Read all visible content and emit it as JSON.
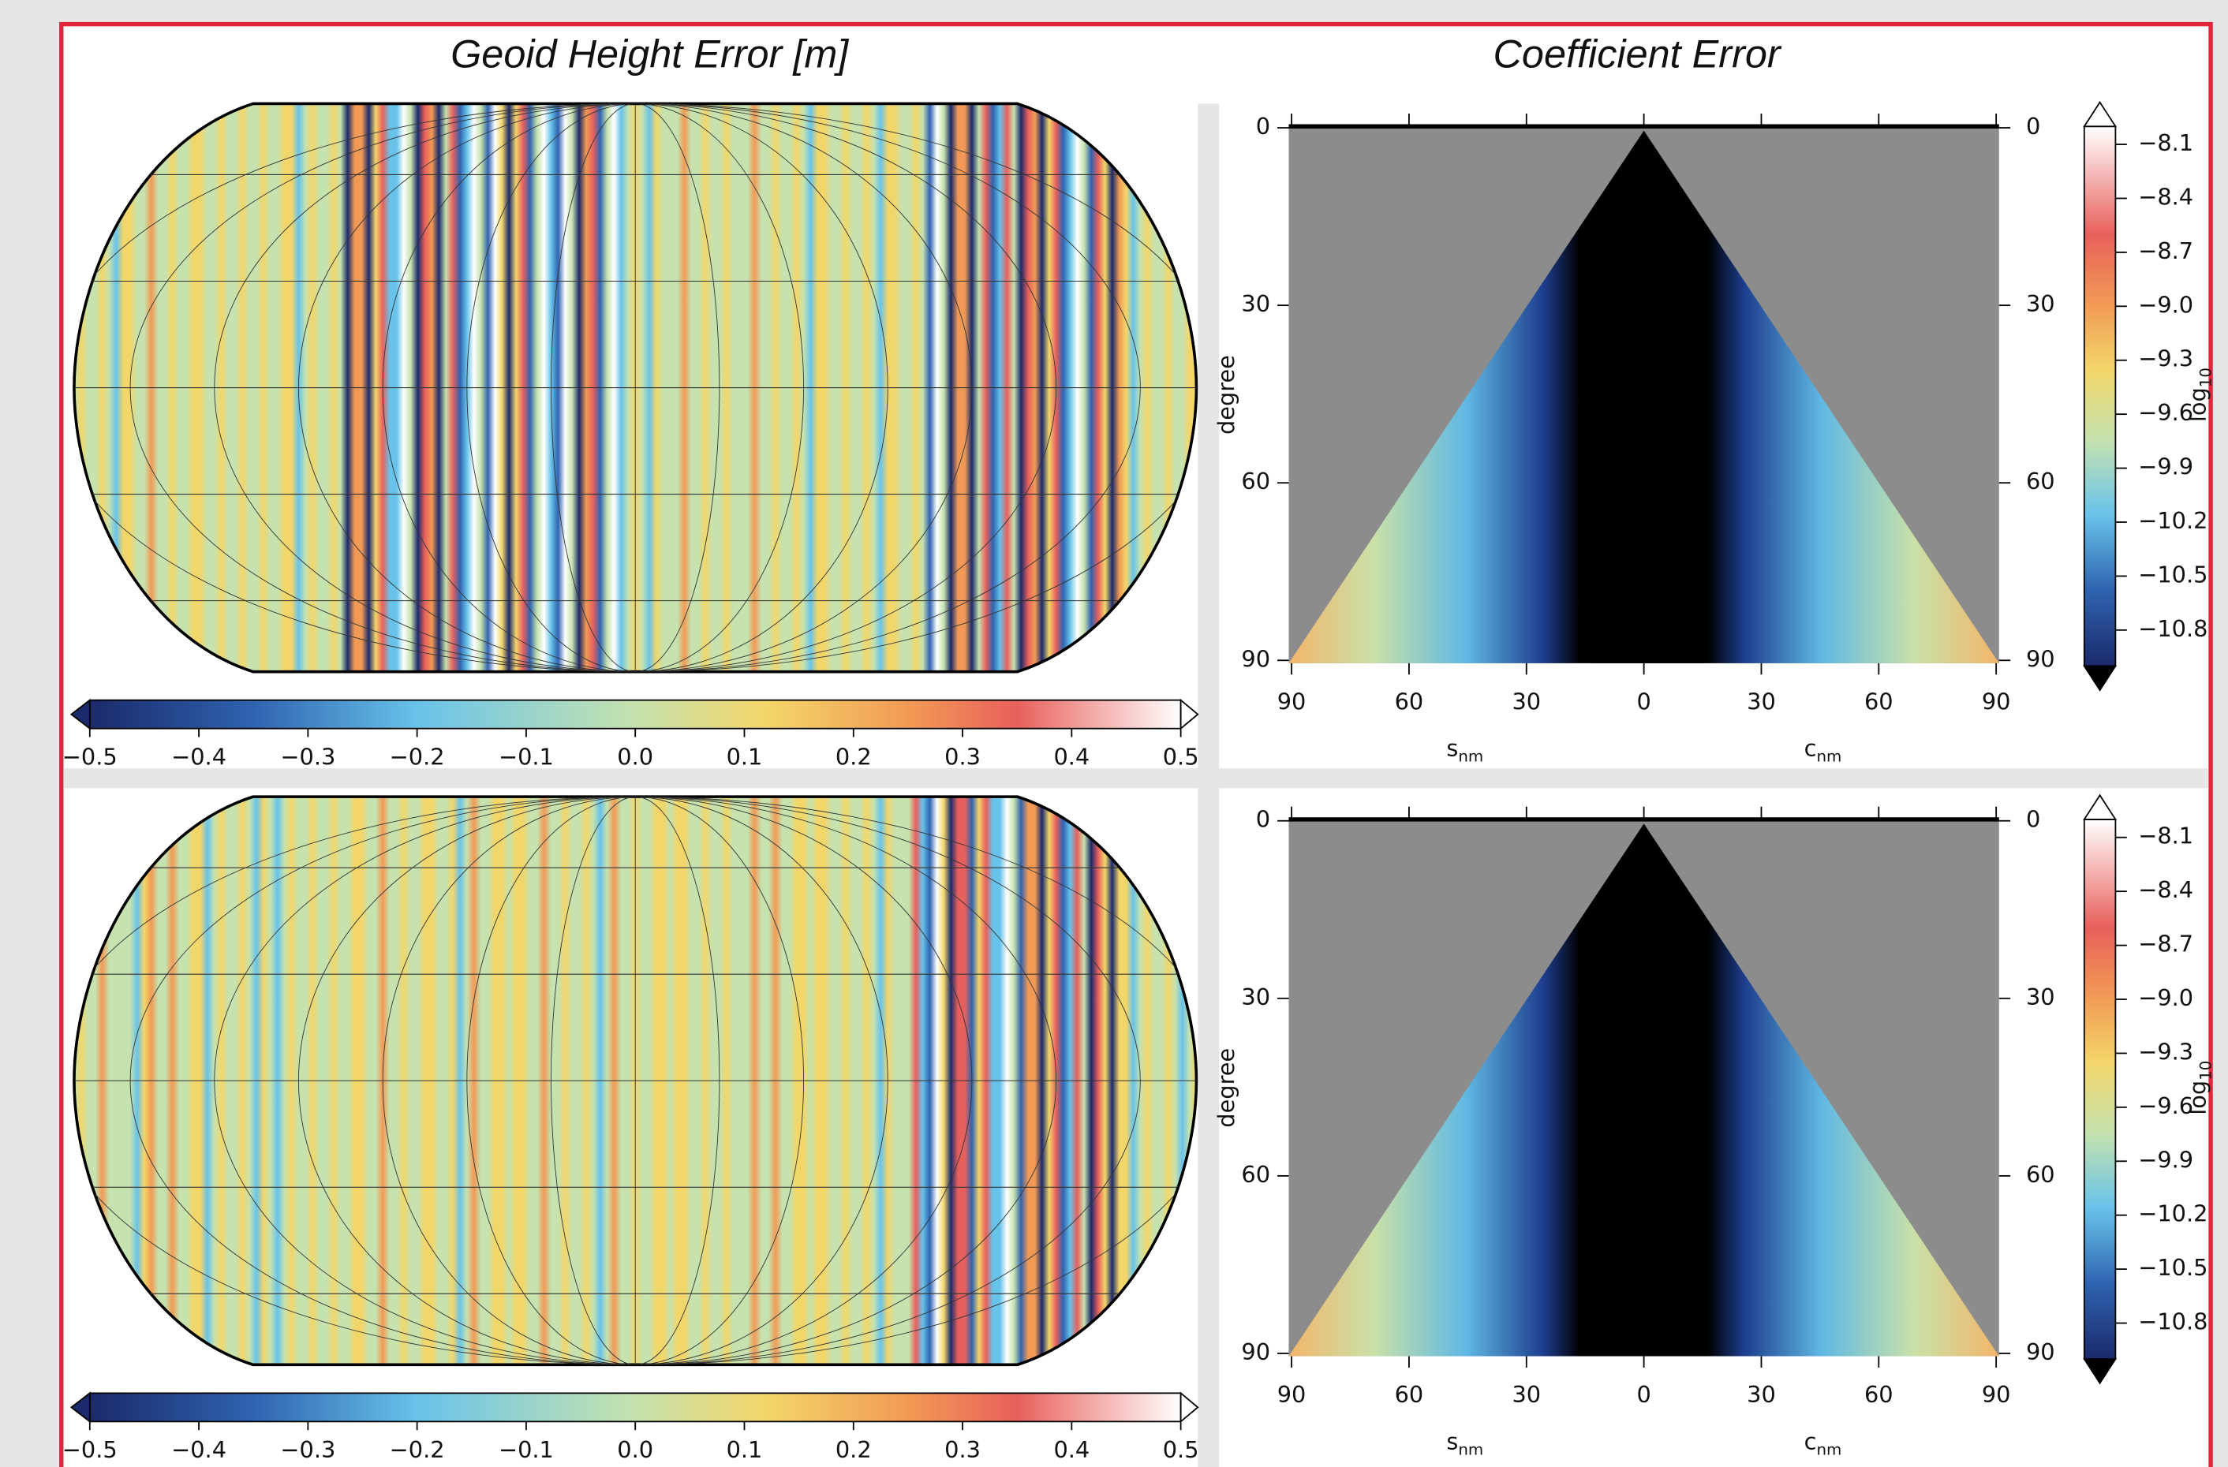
{
  "titles": {
    "geoid": "Geoid Height Error [m]",
    "coefficient": "Coefficient Error"
  },
  "rows": [
    {
      "geoid_colorbar": {
        "lim": [
          -0.5,
          0.5
        ],
        "ticks": [
          {
            "value": -0.5,
            "label": "−0.5"
          },
          {
            "value": -0.4,
            "label": "−0.4"
          },
          {
            "value": -0.3,
            "label": "−0.3"
          },
          {
            "value": -0.2,
            "label": "−0.2"
          },
          {
            "value": -0.1,
            "label": "−0.1"
          },
          {
            "value": 0,
            "label": "0.0"
          },
          0.1,
          0.2,
          0.3,
          0.4,
          0.5
        ]
      },
      "coefficient_plot": {
        "ylabel": "degree",
        "ylim": [
          0,
          90
        ],
        "yticks": [
          0,
          30,
          60,
          90
        ],
        "xlim": [
          -90,
          90
        ],
        "xticks": [
          {
            "value": -90,
            "label": "90"
          },
          {
            "value": -60,
            "label": "60"
          },
          {
            "value": -30,
            "label": "30"
          },
          0,
          30,
          60,
          90
        ],
        "xlabels": [
          {
            "main": "s",
            "sub": "nm"
          },
          {
            "main": "c",
            "sub": "nm"
          }
        ]
      },
      "coefficient_colorbar": {
        "label_main": "log",
        "label_sub": "10",
        "lim": [
          -11,
          -8
        ],
        "ticks": [
          {
            "value": -8.1,
            "label": "−8.1"
          },
          {
            "value": -8.4,
            "label": "−8.4"
          },
          {
            "value": -8.7,
            "label": "−8.7"
          },
          {
            "value": -9.0,
            "label": "−9.0"
          },
          {
            "value": -9.3,
            "label": "−9.3"
          },
          {
            "value": -9.6,
            "label": "−9.6"
          },
          {
            "value": -9.9,
            "label": "−9.9"
          },
          {
            "value": -10.2,
            "label": "−10.2"
          },
          {
            "value": -10.5,
            "label": "−10.5"
          },
          {
            "value": -10.8,
            "label": "−10.8"
          }
        ]
      }
    },
    {
      "geoid_colorbar": {
        "lim": [
          -0.5,
          0.5
        ],
        "ticks": [
          {
            "value": -0.5,
            "label": "−0.5"
          },
          {
            "value": -0.4,
            "label": "−0.4"
          },
          {
            "value": -0.3,
            "label": "−0.3"
          },
          {
            "value": -0.2,
            "label": "−0.2"
          },
          {
            "value": -0.1,
            "label": "−0.1"
          },
          {
            "value": 0,
            "label": "0.0"
          },
          0.1,
          0.2,
          0.3,
          0.4,
          0.5
        ]
      },
      "coefficient_plot": {
        "ylabel": "degree",
        "ylim": [
          0,
          90
        ],
        "yticks": [
          0,
          30,
          60,
          90
        ],
        "xlim": [
          -90,
          90
        ],
        "xticks": [
          {
            "value": -90,
            "label": "90"
          },
          {
            "value": -60,
            "label": "60"
          },
          {
            "value": -30,
            "label": "30"
          },
          0,
          30,
          60,
          90
        ],
        "xlabels": [
          {
            "main": "s",
            "sub": "nm"
          },
          {
            "main": "c",
            "sub": "nm"
          }
        ]
      },
      "coefficient_colorbar": {
        "label_main": "log",
        "label_sub": "10",
        "lim": [
          -11,
          -8
        ],
        "ticks": [
          {
            "value": -8.1,
            "label": "−8.1"
          },
          {
            "value": -8.4,
            "label": "−8.4"
          },
          {
            "value": -8.7,
            "label": "−8.7"
          },
          {
            "value": -9.0,
            "label": "−9.0"
          },
          {
            "value": -9.3,
            "label": "−9.3"
          },
          {
            "value": -9.6,
            "label": "−9.6"
          },
          {
            "value": -9.9,
            "label": "−9.9"
          },
          {
            "value": -10.2,
            "label": "−10.2"
          },
          {
            "value": -10.5,
            "label": "−10.5"
          },
          {
            "value": -10.8,
            "label": "−10.8"
          }
        ]
      }
    }
  ]
}
